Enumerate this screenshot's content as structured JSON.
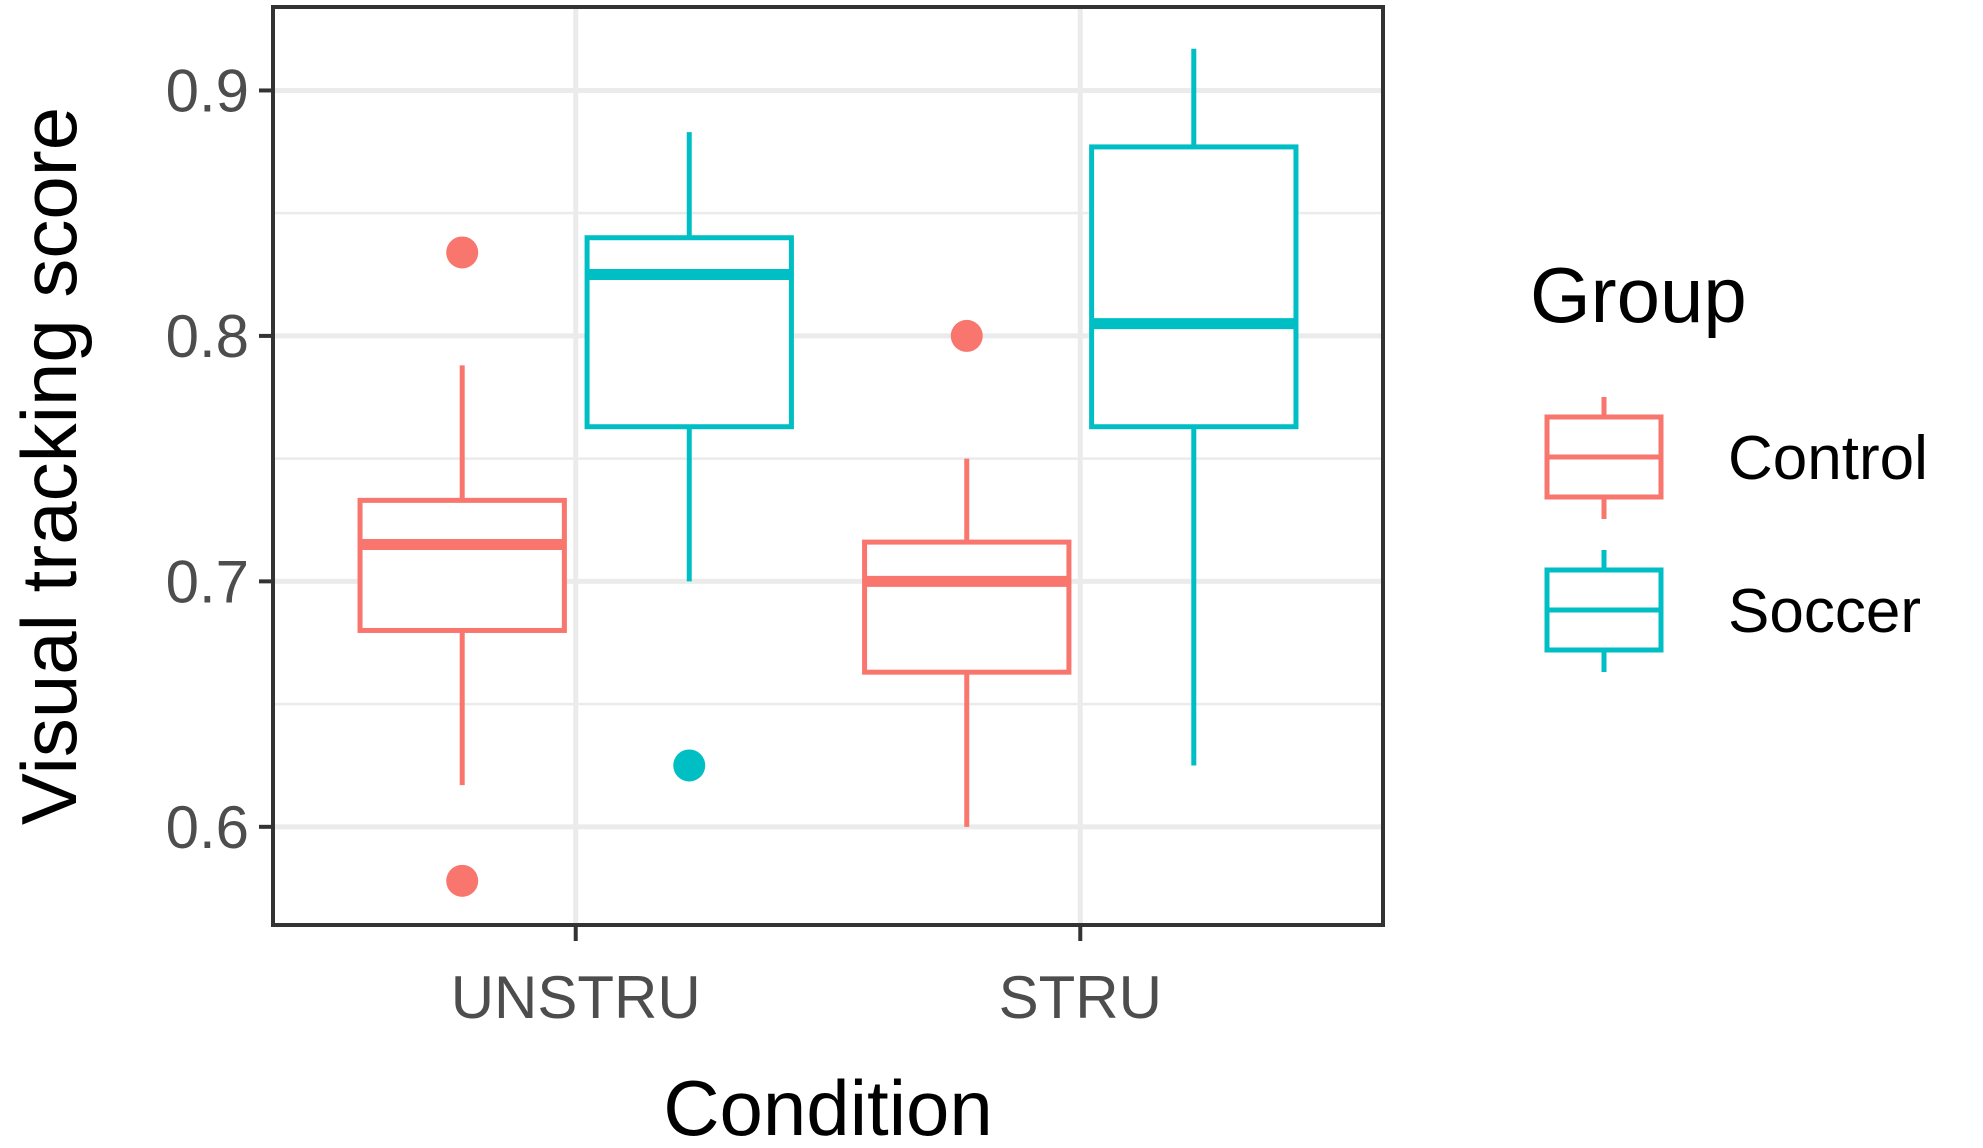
{
  "chart_data": {
    "type": "boxplot",
    "xlabel": "Condition",
    "ylabel": "Visual tracking score",
    "categories": [
      "UNSTRU",
      "STRU"
    ],
    "ylim": [
      0.56,
      0.934
    ],
    "yticks": [
      0.6,
      0.7,
      0.8,
      0.9
    ],
    "ytick_labels": [
      "0.6",
      "0.7",
      "0.8",
      "0.9"
    ],
    "grid": true,
    "legend": {
      "title": "Group",
      "position": "right"
    },
    "series": [
      {
        "name": "Control",
        "color": "#F8766D",
        "boxes": [
          {
            "category": "UNSTRU",
            "whisker_low": 0.617,
            "q1": 0.68,
            "median": 0.715,
            "q3": 0.733,
            "whisker_high": 0.788,
            "outliers": [
              0.834,
              0.578
            ]
          },
          {
            "category": "STRU",
            "whisker_low": 0.6,
            "q1": 0.663,
            "median": 0.7,
            "q3": 0.716,
            "whisker_high": 0.75,
            "outliers": [
              0.8
            ]
          }
        ]
      },
      {
        "name": "Soccer",
        "color": "#00BFC4",
        "boxes": [
          {
            "category": "UNSTRU",
            "whisker_low": 0.7,
            "q1": 0.763,
            "median": 0.825,
            "q3": 0.84,
            "whisker_high": 0.883,
            "outliers": [
              0.625
            ]
          },
          {
            "category": "STRU",
            "whisker_low": 0.625,
            "q1": 0.763,
            "median": 0.805,
            "q3": 0.877,
            "whisker_high": 0.917,
            "outliers": []
          }
        ]
      }
    ]
  }
}
